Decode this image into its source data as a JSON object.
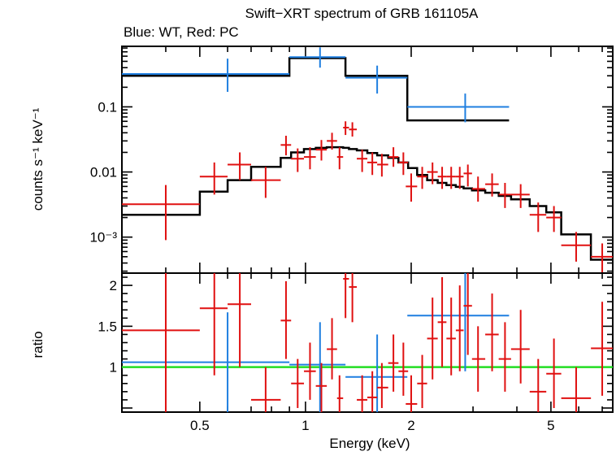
{
  "chart_data": {
    "type": "scatter",
    "title": "Swift−XRT spectrum of GRB 161105A",
    "subtitle": "Blue: WT, Red: PC",
    "xlabel": "Energy (keV)",
    "xscale": "log",
    "xlim": [
      0.3,
      7.5
    ],
    "x_ticks": [
      {
        "value": 0.5,
        "label": "0.5"
      },
      {
        "value": 1,
        "label": "1"
      },
      {
        "value": 2,
        "label": "2"
      },
      {
        "value": 5,
        "label": "5"
      }
    ],
    "colors": {
      "wt": "#1f7fe0",
      "pc": "#e01010",
      "model": "#000000",
      "unity": "#22dd22"
    },
    "top_panel": {
      "ylabel": "counts s⁻¹ keV⁻¹",
      "yscale": "log",
      "ylim": [
        0.00028,
        0.85
      ],
      "y_ticks": [
        {
          "value": 0.1,
          "label": "0.1"
        },
        {
          "value": 0.01,
          "label": "0.01"
        },
        {
          "value": 0.001,
          "label": "10⁻³"
        }
      ],
      "series": [
        {
          "key": "wt",
          "points": [
            {
              "x": 0.6,
              "xlo": 0.3,
              "xhi": 0.9,
              "y": 0.32,
              "ylo": 0.17,
              "yhi": 0.55
            },
            {
              "x": 1.1,
              "xlo": 0.9,
              "xhi": 1.3,
              "y": 0.58,
              "ylo": 0.4,
              "yhi": 0.82
            },
            {
              "x": 1.6,
              "xlo": 1.3,
              "xhi": 1.95,
              "y": 0.28,
              "ylo": 0.16,
              "yhi": 0.43
            },
            {
              "x": 2.85,
              "xlo": 1.95,
              "xhi": 3.8,
              "y": 0.1,
              "ylo": 0.058,
              "yhi": 0.16
            }
          ]
        },
        {
          "key": "pc",
          "points": [
            {
              "x": 0.4,
              "xlo": 0.3,
              "xhi": 0.5,
              "y": 0.0032,
              "ylo": 0.0009,
              "yhi": 0.0063
            },
            {
              "x": 0.55,
              "xlo": 0.5,
              "xhi": 0.6,
              "y": 0.0085,
              "ylo": 0.0045,
              "yhi": 0.014
            },
            {
              "x": 0.65,
              "xlo": 0.6,
              "xhi": 0.7,
              "y": 0.013,
              "ylo": 0.0075,
              "yhi": 0.02
            },
            {
              "x": 0.77,
              "xlo": 0.7,
              "xhi": 0.85,
              "y": 0.0075,
              "ylo": 0.004,
              "yhi": 0.012
            },
            {
              "x": 0.88,
              "xlo": 0.85,
              "xhi": 0.91,
              "y": 0.026,
              "ylo": 0.018,
              "yhi": 0.036
            },
            {
              "x": 0.95,
              "xlo": 0.91,
              "xhi": 0.99,
              "y": 0.016,
              "ylo": 0.01,
              "yhi": 0.023
            },
            {
              "x": 1.03,
              "xlo": 0.99,
              "xhi": 1.07,
              "y": 0.017,
              "ylo": 0.011,
              "yhi": 0.024
            },
            {
              "x": 1.11,
              "xlo": 1.07,
              "xhi": 1.15,
              "y": 0.022,
              "ylo": 0.015,
              "yhi": 0.031
            },
            {
              "x": 1.19,
              "xlo": 1.15,
              "xhi": 1.23,
              "y": 0.03,
              "ylo": 0.022,
              "yhi": 0.04
            },
            {
              "x": 1.25,
              "xlo": 1.23,
              "xhi": 1.28,
              "y": 0.017,
              "ylo": 0.011,
              "yhi": 0.024
            },
            {
              "x": 1.3,
              "xlo": 1.28,
              "xhi": 1.33,
              "y": 0.048,
              "ylo": 0.037,
              "yhi": 0.06
            },
            {
              "x": 1.36,
              "xlo": 1.33,
              "xhi": 1.4,
              "y": 0.045,
              "ylo": 0.035,
              "yhi": 0.058
            },
            {
              "x": 1.45,
              "xlo": 1.4,
              "xhi": 1.5,
              "y": 0.016,
              "ylo": 0.01,
              "yhi": 0.022
            },
            {
              "x": 1.55,
              "xlo": 1.5,
              "xhi": 1.6,
              "y": 0.014,
              "ylo": 0.009,
              "yhi": 0.02
            },
            {
              "x": 1.65,
              "xlo": 1.6,
              "xhi": 1.72,
              "y": 0.013,
              "ylo": 0.0085,
              "yhi": 0.019
            },
            {
              "x": 1.78,
              "xlo": 1.72,
              "xhi": 1.84,
              "y": 0.017,
              "ylo": 0.012,
              "yhi": 0.024
            },
            {
              "x": 1.9,
              "xlo": 1.84,
              "xhi": 1.96,
              "y": 0.014,
              "ylo": 0.009,
              "yhi": 0.02
            },
            {
              "x": 2.0,
              "xlo": 1.93,
              "xhi": 2.08,
              "y": 0.006,
              "ylo": 0.0035,
              "yhi": 0.0095
            },
            {
              "x": 2.15,
              "xlo": 2.08,
              "xhi": 2.22,
              "y": 0.0085,
              "ylo": 0.0055,
              "yhi": 0.012
            },
            {
              "x": 2.3,
              "xlo": 2.22,
              "xhi": 2.38,
              "y": 0.01,
              "ylo": 0.0065,
              "yhi": 0.014
            },
            {
              "x": 2.45,
              "xlo": 2.38,
              "xhi": 2.52,
              "y": 0.0085,
              "ylo": 0.0055,
              "yhi": 0.012
            },
            {
              "x": 2.6,
              "xlo": 2.52,
              "xhi": 2.68,
              "y": 0.0085,
              "ylo": 0.0055,
              "yhi": 0.012
            },
            {
              "x": 2.75,
              "xlo": 2.68,
              "xhi": 2.82,
              "y": 0.0085,
              "ylo": 0.0055,
              "yhi": 0.012
            },
            {
              "x": 2.9,
              "xlo": 2.82,
              "xhi": 2.98,
              "y": 0.0095,
              "ylo": 0.006,
              "yhi": 0.013
            },
            {
              "x": 3.1,
              "xlo": 2.98,
              "xhi": 3.25,
              "y": 0.0055,
              "ylo": 0.0035,
              "yhi": 0.0085
            },
            {
              "x": 3.4,
              "xlo": 3.25,
              "xhi": 3.55,
              "y": 0.0065,
              "ylo": 0.0042,
              "yhi": 0.0095
            },
            {
              "x": 3.7,
              "xlo": 3.55,
              "xhi": 3.85,
              "y": 0.0045,
              "ylo": 0.0028,
              "yhi": 0.0068
            },
            {
              "x": 4.1,
              "xlo": 3.85,
              "xhi": 4.35,
              "y": 0.0045,
              "ylo": 0.0028,
              "yhi": 0.0065
            },
            {
              "x": 4.6,
              "xlo": 4.35,
              "xhi": 4.85,
              "y": 0.0022,
              "ylo": 0.0012,
              "yhi": 0.0034
            },
            {
              "x": 5.1,
              "xlo": 4.85,
              "xhi": 5.35,
              "y": 0.002,
              "ylo": 0.0012,
              "yhi": 0.003
            },
            {
              "x": 5.9,
              "xlo": 5.35,
              "xhi": 6.5,
              "y": 0.00075,
              "ylo": 0.00042,
              "yhi": 0.0012
            },
            {
              "x": 7.0,
              "xlo": 6.5,
              "xhi": 7.5,
              "y": 0.0005,
              "ylo": 0.00028,
              "yhi": 0.0008
            }
          ]
        }
      ],
      "models": [
        {
          "key": "wt",
          "steps": [
            {
              "xlo": 0.3,
              "xhi": 0.9,
              "y": 0.3
            },
            {
              "xlo": 0.9,
              "xhi": 1.3,
              "y": 0.56
            },
            {
              "xlo": 1.3,
              "xhi": 1.95,
              "y": 0.3
            },
            {
              "xlo": 1.95,
              "xhi": 3.8,
              "y": 0.062
            }
          ]
        },
        {
          "key": "pc",
          "steps": [
            {
              "xlo": 0.3,
              "xhi": 0.5,
              "y": 0.0022
            },
            {
              "xlo": 0.5,
              "xhi": 0.6,
              "y": 0.005
            },
            {
              "xlo": 0.6,
              "xhi": 0.7,
              "y": 0.0075
            },
            {
              "xlo": 0.7,
              "xhi": 0.85,
              "y": 0.012
            },
            {
              "xlo": 0.85,
              "xhi": 0.91,
              "y": 0.0165
            },
            {
              "xlo": 0.91,
              "xhi": 0.99,
              "y": 0.02
            },
            {
              "xlo": 0.99,
              "xhi": 1.07,
              "y": 0.0225
            },
            {
              "xlo": 1.07,
              "xhi": 1.15,
              "y": 0.0235
            },
            {
              "xlo": 1.15,
              "xhi": 1.23,
              "y": 0.024
            },
            {
              "xlo": 1.23,
              "xhi": 1.28,
              "y": 0.024
            },
            {
              "xlo": 1.28,
              "xhi": 1.33,
              "y": 0.0235
            },
            {
              "xlo": 1.33,
              "xhi": 1.4,
              "y": 0.0225
            },
            {
              "xlo": 1.4,
              "xhi": 1.5,
              "y": 0.0215
            },
            {
              "xlo": 1.5,
              "xhi": 1.6,
              "y": 0.0195
            },
            {
              "xlo": 1.6,
              "xhi": 1.72,
              "y": 0.018
            },
            {
              "xlo": 1.72,
              "xhi": 1.84,
              "y": 0.0165
            },
            {
              "xlo": 1.84,
              "xhi": 1.96,
              "y": 0.014
            },
            {
              "xlo": 1.96,
              "xhi": 2.08,
              "y": 0.0115
            },
            {
              "xlo": 2.08,
              "xhi": 2.22,
              "y": 0.009
            },
            {
              "xlo": 2.22,
              "xhi": 2.38,
              "y": 0.0075
            },
            {
              "xlo": 2.38,
              "xhi": 2.52,
              "y": 0.0068
            },
            {
              "xlo": 2.52,
              "xhi": 2.68,
              "y": 0.0063
            },
            {
              "xlo": 2.68,
              "xhi": 2.82,
              "y": 0.0059
            },
            {
              "xlo": 2.82,
              "xhi": 2.98,
              "y": 0.0056
            },
            {
              "xlo": 2.98,
              "xhi": 3.25,
              "y": 0.0052
            },
            {
              "xlo": 3.25,
              "xhi": 3.55,
              "y": 0.0048
            },
            {
              "xlo": 3.55,
              "xhi": 3.85,
              "y": 0.0043
            },
            {
              "xlo": 3.85,
              "xhi": 4.35,
              "y": 0.0038
            },
            {
              "xlo": 4.35,
              "xhi": 4.85,
              "y": 0.003
            },
            {
              "xlo": 4.85,
              "xhi": 5.35,
              "y": 0.0024
            },
            {
              "xlo": 5.35,
              "xhi": 6.5,
              "y": 0.0011
            },
            {
              "xlo": 6.5,
              "xhi": 7.5,
              "y": 0.00045
            }
          ]
        }
      ]
    },
    "bottom_panel": {
      "ylabel": "ratio",
      "yscale": "linear",
      "ylim": [
        0.45,
        2.15
      ],
      "y_ticks": [
        {
          "value": 1,
          "label": "1"
        },
        {
          "value": 1.5,
          "label": "1.5"
        },
        {
          "value": 2,
          "label": "2"
        }
      ],
      "reference_line": 1,
      "series": [
        {
          "key": "wt",
          "points": [
            {
              "x": 0.6,
              "xlo": 0.3,
              "xhi": 0.9,
              "y": 1.06,
              "ylo": 0.45,
              "yhi": 1.67
            },
            {
              "x": 1.1,
              "xlo": 0.9,
              "xhi": 1.3,
              "y": 1.03,
              "ylo": 0.45,
              "yhi": 1.55
            },
            {
              "x": 1.6,
              "xlo": 1.3,
              "xhi": 1.95,
              "y": 0.88,
              "ylo": 0.45,
              "yhi": 1.4
            },
            {
              "x": 2.85,
              "xlo": 1.95,
              "xhi": 3.8,
              "y": 1.63,
              "ylo": 0.95,
              "yhi": 2.15
            }
          ]
        },
        {
          "key": "pc",
          "points": [
            {
              "x": 0.4,
              "xlo": 0.3,
              "xhi": 0.5,
              "y": 1.45,
              "ylo": 0.45,
              "yhi": 2.15
            },
            {
              "x": 0.55,
              "xlo": 0.5,
              "xhi": 0.6,
              "y": 1.72,
              "ylo": 0.9,
              "yhi": 2.15
            },
            {
              "x": 0.65,
              "xlo": 0.6,
              "xhi": 0.7,
              "y": 1.77,
              "ylo": 1.0,
              "yhi": 2.15
            },
            {
              "x": 0.77,
              "xlo": 0.7,
              "xhi": 0.85,
              "y": 0.6,
              "ylo": 0.45,
              "yhi": 1.0
            },
            {
              "x": 0.88,
              "xlo": 0.85,
              "xhi": 0.91,
              "y": 1.57,
              "ylo": 1.1,
              "yhi": 2.05
            },
            {
              "x": 0.95,
              "xlo": 0.91,
              "xhi": 0.99,
              "y": 0.8,
              "ylo": 0.5,
              "yhi": 1.1
            },
            {
              "x": 1.03,
              "xlo": 0.99,
              "xhi": 1.07,
              "y": 0.95,
              "ylo": 0.6,
              "yhi": 1.3
            },
            {
              "x": 1.11,
              "xlo": 1.07,
              "xhi": 1.15,
              "y": 0.77,
              "ylo": 0.45,
              "yhi": 1.05
            },
            {
              "x": 1.19,
              "xlo": 1.15,
              "xhi": 1.23,
              "y": 1.22,
              "ylo": 0.85,
              "yhi": 1.6
            },
            {
              "x": 1.25,
              "xlo": 1.23,
              "xhi": 1.28,
              "y": 0.62,
              "ylo": 0.45,
              "yhi": 0.9
            },
            {
              "x": 1.3,
              "xlo": 1.28,
              "xhi": 1.33,
              "y": 2.08,
              "ylo": 1.6,
              "yhi": 2.15
            },
            {
              "x": 1.36,
              "xlo": 1.33,
              "xhi": 1.4,
              "y": 1.98,
              "ylo": 1.55,
              "yhi": 2.15
            },
            {
              "x": 1.45,
              "xlo": 1.4,
              "xhi": 1.5,
              "y": 0.6,
              "ylo": 0.45,
              "yhi": 0.9
            },
            {
              "x": 1.55,
              "xlo": 1.5,
              "xhi": 1.6,
              "y": 0.63,
              "ylo": 0.45,
              "yhi": 0.95
            },
            {
              "x": 1.65,
              "xlo": 1.6,
              "xhi": 1.72,
              "y": 0.75,
              "ylo": 0.5,
              "yhi": 1.05
            },
            {
              "x": 1.78,
              "xlo": 1.72,
              "xhi": 1.84,
              "y": 1.05,
              "ylo": 0.7,
              "yhi": 1.4
            },
            {
              "x": 1.9,
              "xlo": 1.84,
              "xhi": 1.96,
              "y": 0.95,
              "ylo": 0.65,
              "yhi": 1.3
            },
            {
              "x": 2.0,
              "xlo": 1.93,
              "xhi": 2.08,
              "y": 0.55,
              "ylo": 0.45,
              "yhi": 0.9
            },
            {
              "x": 2.15,
              "xlo": 2.08,
              "xhi": 2.22,
              "y": 0.8,
              "ylo": 0.5,
              "yhi": 1.15
            },
            {
              "x": 2.3,
              "xlo": 2.22,
              "xhi": 2.38,
              "y": 1.35,
              "ylo": 0.85,
              "yhi": 1.85
            },
            {
              "x": 2.45,
              "xlo": 2.38,
              "xhi": 2.52,
              "y": 1.55,
              "ylo": 1.0,
              "yhi": 2.1
            },
            {
              "x": 2.6,
              "xlo": 2.52,
              "xhi": 2.68,
              "y": 1.35,
              "ylo": 0.9,
              "yhi": 1.85
            },
            {
              "x": 2.75,
              "xlo": 2.68,
              "xhi": 2.82,
              "y": 1.45,
              "ylo": 0.95,
              "yhi": 2.0
            },
            {
              "x": 2.9,
              "xlo": 2.82,
              "xhi": 2.98,
              "y": 1.75,
              "ylo": 1.15,
              "yhi": 2.15
            },
            {
              "x": 3.1,
              "xlo": 2.98,
              "xhi": 3.25,
              "y": 1.1,
              "ylo": 0.7,
              "yhi": 1.5
            },
            {
              "x": 3.4,
              "xlo": 3.25,
              "xhi": 3.55,
              "y": 1.4,
              "ylo": 0.95,
              "yhi": 1.9
            },
            {
              "x": 3.7,
              "xlo": 3.55,
              "xhi": 3.85,
              "y": 1.1,
              "ylo": 0.7,
              "yhi": 1.55
            },
            {
              "x": 4.1,
              "xlo": 3.85,
              "xhi": 4.35,
              "y": 1.22,
              "ylo": 0.8,
              "yhi": 1.7
            },
            {
              "x": 4.6,
              "xlo": 4.35,
              "xhi": 4.85,
              "y": 0.7,
              "ylo": 0.45,
              "yhi": 1.1
            },
            {
              "x": 5.1,
              "xlo": 4.85,
              "xhi": 5.35,
              "y": 0.92,
              "ylo": 0.5,
              "yhi": 1.35
            },
            {
              "x": 5.9,
              "xlo": 5.35,
              "xhi": 6.5,
              "y": 0.62,
              "ylo": 0.45,
              "yhi": 1.0
            },
            {
              "x": 7.0,
              "xlo": 6.5,
              "xhi": 7.5,
              "y": 1.23,
              "ylo": 0.65,
              "yhi": 1.8
            }
          ]
        }
      ]
    }
  }
}
